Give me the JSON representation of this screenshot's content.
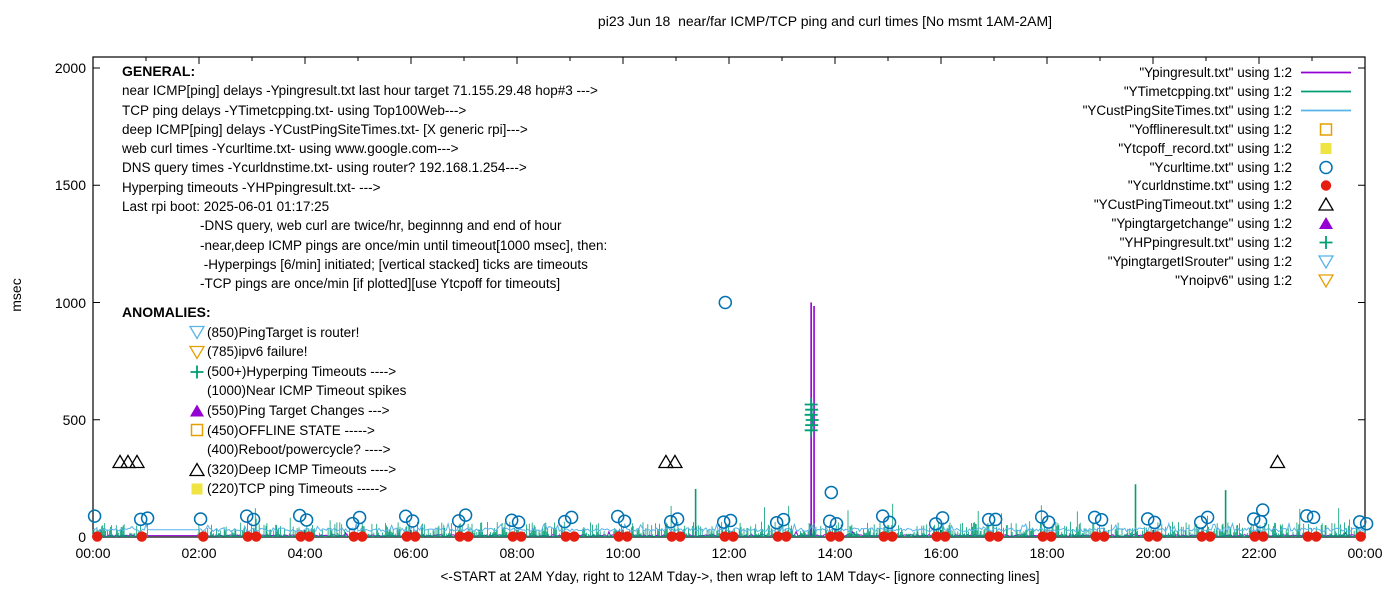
{
  "colors": {
    "purple": "#9400D3",
    "teal": "#009E73",
    "skyblue": "#56B4E9",
    "orange": "#E69F00",
    "yellow": "#F0E442",
    "blue": "#0072B2",
    "red": "#E51E10",
    "black": "#000000"
  },
  "general": {
    "heading": "GENERAL:",
    "lines": [
      "near ICMP[ping] delays -Ypingresult.txt last hour target 71.155.29.48 hop#3 --->",
      "TCP ping delays -YTimetcpping.txt- using Top100Web--->",
      "deep ICMP[ping] delays -YCustPingSiteTimes.txt- [X generic rpi]--->",
      "web curl times -Ycurltime.txt- using www.google.com--->",
      "DNS query times -Ycurldnstime.txt- using router? 192.168.1.254--->",
      "Hyperping timeouts -YHPpingresult.txt- --->",
      "Last rpi boot: 2025-06-01 01:17:25"
    ],
    "indented_lines": [
      "-DNS query, web curl are twice/hr, beginnng and end of hour",
      "-near,deep ICMP pings are once/min until timeout[1000 msec], then:",
      " -Hyperpings [6/min] initiated; [vertical stacked] ticks are timeouts",
      "-TCP pings are once/min [if plotted][use Ytcpoff for timeouts]"
    ]
  },
  "anomalies": {
    "heading": "ANOMALIES:",
    "items": [
      {
        "marker": "triangle_down_open",
        "color": "skyblue",
        "label": "(850)PingTarget is router!"
      },
      {
        "marker": "triangle_down_open",
        "color": "orange",
        "label": "(785)ipv6 failure!"
      },
      {
        "marker": "plus",
        "color": "teal",
        "label": "(500+)Hyperping Timeouts ---->"
      },
      {
        "marker": "none",
        "color": "black",
        "label": "(1000)Near ICMP Timeout spikes"
      },
      {
        "marker": "triangle_filled",
        "color": "purple",
        "label": "(550)Ping Target Changes --->"
      },
      {
        "marker": "square_open",
        "color": "orange",
        "label": "(450)OFFLINE STATE ----->"
      },
      {
        "marker": "none",
        "color": "black",
        "label": "(400)Reboot/powercycle? ---->"
      },
      {
        "marker": "triangle_open",
        "color": "black",
        "label": "(320)Deep ICMP Timeouts ---->"
      },
      {
        "marker": "square_filled",
        "color": "yellow",
        "label": "(220)TCP ping Timeouts ----->"
      }
    ]
  },
  "legend": {
    "items": [
      {
        "label": "\"Ypingresult.txt\" using 1:2",
        "marker": "line",
        "color": "purple"
      },
      {
        "label": "\"YTimetcpping.txt\" using 1:2",
        "marker": "line",
        "color": "teal"
      },
      {
        "label": "\"YCustPingSiteTimes.txt\" using 1:2",
        "marker": "line",
        "color": "skyblue"
      },
      {
        "label": "\"Yofflineresult.txt\" using 1:2",
        "marker": "square_open",
        "color": "orange"
      },
      {
        "label": "\"Ytcpoff_record.txt\" using 1:2",
        "marker": "square_filled",
        "color": "yellow"
      },
      {
        "label": "\"Ycurltime.txt\" using 1:2",
        "marker": "circle_open",
        "color": "blue"
      },
      {
        "label": "\"Ycurldnstime.txt\" using 1:2",
        "marker": "circle_filled",
        "color": "red"
      },
      {
        "label": "\"YCustPingTimeout.txt\" using 1:2",
        "marker": "triangle_open",
        "color": "black"
      },
      {
        "label": "\"Ypingtargetchange\" using 1:2",
        "marker": "triangle_filled",
        "color": "purple"
      },
      {
        "label": "\"YHPpingresult.txt\" using 1:2",
        "marker": "plus",
        "color": "teal"
      },
      {
        "label": "\"YpingtargetISrouter\" using 1:2",
        "marker": "triangle_down_open",
        "color": "skyblue"
      },
      {
        "label": "\"Ynoipv6\" using 1:2",
        "marker": "triangle_down_open",
        "color": "orange"
      }
    ]
  },
  "chart_data": {
    "type": "line",
    "title": "pi23 Jun 18  near/far ICMP/TCP ping and curl times [No msmt 1AM-2AM]",
    "xlabel": "<-START at 2AM Yday, right to 12AM Tday->, then wrap left to 1AM Tday<- [ignore connecting lines]",
    "ylabel": "msec",
    "x_range_hours": [
      0,
      24
    ],
    "y_range_msec": [
      0,
      2047
    ],
    "grid": false,
    "legend_position": "top-right-inside",
    "x_tick_labels": [
      "00:00",
      "02:00",
      "04:00",
      "06:00",
      "08:00",
      "10:00",
      "12:00",
      "14:00",
      "16:00",
      "18:00",
      "20:00",
      "22:00",
      "00:00"
    ],
    "x_tick_hours": [
      0,
      2,
      4,
      6,
      8,
      10,
      12,
      14,
      16,
      18,
      20,
      22,
      24
    ],
    "x_axis": {
      "major_every_hours": 2,
      "minor_every_hours": 1
    },
    "y_tick_labels": [
      "0",
      "500",
      "1000",
      "1500",
      "2000"
    ],
    "y_tick_values": [
      0,
      500,
      1000,
      1500,
      2000
    ],
    "gap_hours": [
      1.0,
      1.97
    ],
    "hour_marks": [
      0,
      1,
      2,
      3,
      4,
      5,
      6,
      7,
      8,
      9,
      10,
      11,
      12,
      13,
      14,
      15,
      16,
      17,
      18,
      19,
      20,
      21,
      22,
      23,
      24
    ],
    "series": [
      {
        "id": "Ypingresult",
        "kind": "noise_line",
        "color": "purple",
        "seed": 21,
        "base": 6,
        "jitter": 4,
        "spike_prob": 0.01,
        "spike_max": 24,
        "step_min": 2,
        "bridge_gap": true,
        "impulses": [
          [
            13.55,
            1000
          ],
          [
            13.605,
            985
          ]
        ]
      },
      {
        "id": "YTimetcpping",
        "kind": "grass",
        "color": "teal",
        "seed": 31,
        "base": 3,
        "typ": 62,
        "tall_prob": 0.015,
        "tall_max": 150,
        "step_min": 1.1,
        "impulses": [
          [
            11.37,
            205
          ],
          [
            19.67,
            225
          ],
          [
            21.37,
            200
          ]
        ]
      },
      {
        "id": "YCustPingSiteTimes",
        "kind": "noise_line",
        "color": "skyblue",
        "seed": 11,
        "base": 31,
        "jitter": 8,
        "spike_prob": 0.05,
        "spike_max": 58,
        "step_min": 2,
        "bridge_gap": true
      },
      {
        "id": "Yofflineresult",
        "kind": "scatter",
        "marker": "square_open",
        "color": "orange",
        "points": []
      },
      {
        "id": "Ytcpoff_record",
        "kind": "scatter",
        "marker": "square_filled",
        "color": "yellow",
        "points": []
      },
      {
        "id": "Ycurltime",
        "kind": "scatter",
        "marker": "circle_open",
        "color": "blue",
        "seed": 41,
        "hourly": {
          "offsets": [
            -0.1,
            0.03
          ],
          "y_base": 55,
          "y_jitter": 40
        },
        "points": [
          [
            11.93,
            1000
          ],
          [
            13.93,
            190
          ],
          [
            22.07,
            115
          ]
        ]
      },
      {
        "id": "Ycurldnstime",
        "kind": "scatter",
        "marker": "circle_filled",
        "color": "red",
        "seed": 51,
        "hourly": {
          "offsets": [
            -0.08,
            0.08
          ],
          "y_base": 2,
          "y_jitter": 0
        },
        "points": []
      },
      {
        "id": "YCustPingTimeout",
        "kind": "scatter",
        "marker": "triangle_open",
        "color": "black",
        "points": [
          [
            0.51,
            320
          ],
          [
            0.66,
            320
          ],
          [
            0.83,
            320
          ],
          [
            10.81,
            320
          ],
          [
            10.98,
            320
          ],
          [
            22.35,
            320
          ]
        ]
      },
      {
        "id": "Ypingtargetchange",
        "kind": "scatter",
        "marker": "triangle_filled",
        "color": "purple",
        "points": []
      },
      {
        "id": "YHPpingresult",
        "kind": "scatter",
        "marker": "plus",
        "color": "teal",
        "points": [
          [
            13.55,
            565
          ],
          [
            13.56,
            543
          ],
          [
            13.55,
            521
          ],
          [
            13.57,
            499
          ],
          [
            13.56,
            477
          ],
          [
            13.55,
            455
          ]
        ]
      },
      {
        "id": "YpingtargetISrouter",
        "kind": "scatter",
        "marker": "triangle_down_open",
        "color": "skyblue",
        "points": []
      },
      {
        "id": "Ynoipv6",
        "kind": "scatter",
        "marker": "triangle_down_open",
        "color": "orange",
        "points": []
      }
    ]
  }
}
